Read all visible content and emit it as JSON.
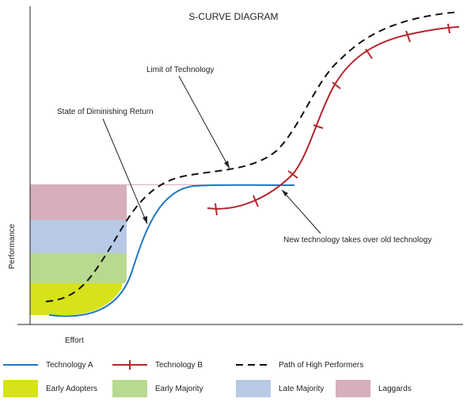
{
  "title": "S-CURVE DIAGRAM",
  "axes": {
    "y_label": "Performance",
    "x_label": "Effort"
  },
  "annotations": {
    "limit": "Limit of Technology",
    "diminishing": "State of Diminishing Return",
    "takeover": "New technology takes over old technology"
  },
  "legend": {
    "tech_a": "Technology A",
    "tech_b": "Technology B",
    "high_performers": "Path of High Performers",
    "early_adopters": "Early Adopters",
    "early_majority": "Early Majority",
    "late_majority": "Late Majority",
    "laggards": "Laggards"
  },
  "colors": {
    "tech_a": "#1f77c4",
    "tech_b": "#b5252d",
    "high_performers": "#111111",
    "early_adopters": "#d6e21a",
    "early_majority": "#b8d98f",
    "late_majority": "#b8c9e6",
    "laggards": "#d6aebd"
  }
}
